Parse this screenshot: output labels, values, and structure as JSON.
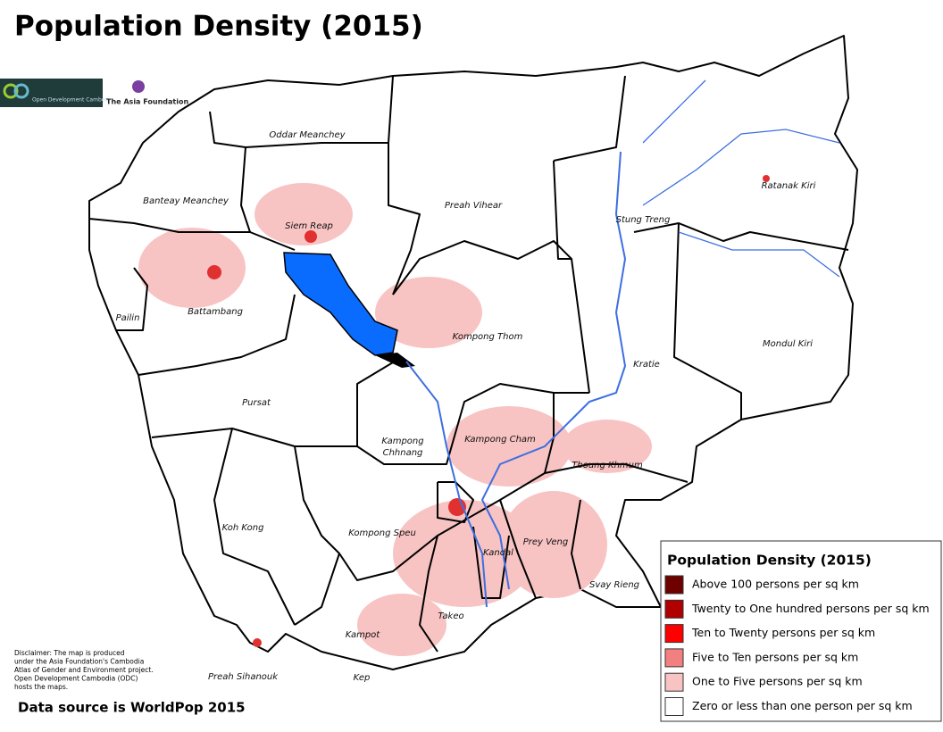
{
  "title": "Population Density (2015)",
  "logos": [
    "Open Development Cambodia",
    "The Asia Foundation"
  ],
  "provinces": [
    "Oddar Meanchey",
    "Banteay Meanchey",
    "Siem Reap",
    "Preah Vihear",
    "Stung Treng",
    "Ratanak Kiri",
    "Pailin",
    "Battambang",
    "Kompong Thom",
    "Kratie",
    "Mondul Kiri",
    "Pursat",
    [
      "Kampong",
      "Chhnang"
    ],
    "Kampong Cham",
    "Tboung Khmum",
    "Koh Kong",
    "Kompong Speu",
    "Kandal",
    "Prey Veng",
    "Svay Rieng",
    "Takeo",
    "Kampot",
    "Preah Sihanouk",
    "Kep"
  ],
  "legend": {
    "title": "Population Density (2015)",
    "items": [
      {
        "label": "Above 100 persons per sq km",
        "color": "#6e0000"
      },
      {
        "label": "Twenty to One hundred persons per sq km",
        "color": "#b00000"
      },
      {
        "label": "Ten to Twenty persons per sq km",
        "color": "#ff0000"
      },
      {
        "label": "Five to Ten persons per sq km",
        "color": "#f28080"
      },
      {
        "label": "One to Five persons per sq km",
        "color": "#f8c3c3"
      },
      {
        "label": "Zero or less than one person per sq km",
        "color": "#ffffff"
      }
    ]
  },
  "disclaimer": [
    "Disclaimer: The map is produced",
    "under the Asia Foundation's Cambodia",
    "Atlas of Gender and Environment project.",
    "Open Development Cambodia (ODC)",
    "hosts the maps."
  ],
  "source": "Data source is WorldPop 2015"
}
